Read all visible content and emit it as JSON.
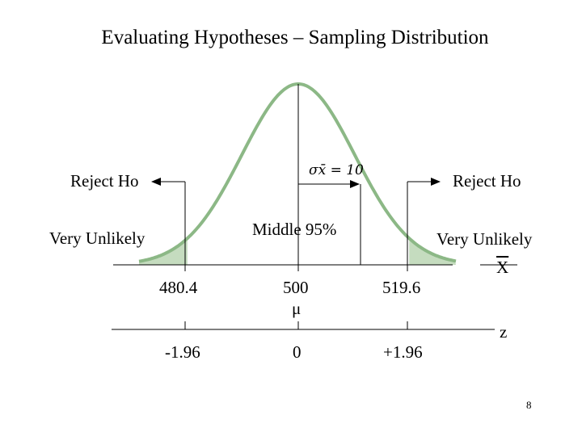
{
  "title": "Evaluating Hypotheses – Sampling Distribution",
  "labels": {
    "reject_left": "Reject Ho",
    "reject_right": "Reject Ho",
    "very_unlikely_left": "Very Unlikely",
    "very_unlikely_right": "Very Unlikely",
    "middle": "Middle 95%",
    "sigma": "σx̄ = 10",
    "x_axis_name": "X",
    "z_axis_name": "z",
    "mu": "μ"
  },
  "x_axis": {
    "ticks": [
      "480.4",
      "500",
      "519.6"
    ]
  },
  "z_axis": {
    "ticks": [
      "-1.96",
      "0",
      "+1.96"
    ]
  },
  "page_number": "8",
  "colors": {
    "tail_fill": "#c5dcbf",
    "curve_stroke": "#8cb886"
  },
  "chart_data": {
    "type": "area",
    "distribution": "normal",
    "mean": 500,
    "sd": 10,
    "critical_values": [
      480.4,
      519.6
    ],
    "z_critical": [
      -1.96,
      1.96
    ],
    "middle_percent": 95
  }
}
